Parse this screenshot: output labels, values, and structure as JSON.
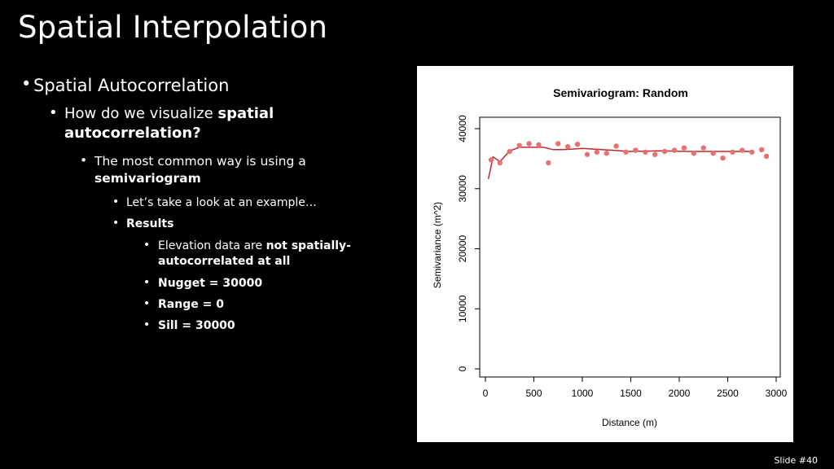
{
  "slide": {
    "title": "Spatial Interpolation",
    "footer": "Slide #40"
  },
  "bullets": {
    "b1": "Spatial Autocorrelation",
    "b2_plain": "How do we visualize ",
    "b2_bold": "spatial",
    "b2_line2": "autocorrelation?",
    "b3_plain": "The most common way is using a",
    "b3_bold": "semivariogram",
    "b4": "Let’s take a look at an example…",
    "b5": "Results",
    "b6_plain": "Elevation data are ",
    "b6_bold": "not spatially-",
    "b6_line2": "autocorrelated at all",
    "b7": "Nugget = 30000",
    "b8": "Range = 0",
    "b9": "Sill = 30000"
  },
  "chart_data": {
    "type": "scatter",
    "title": "Semivariogram: Random",
    "xlabel": "Distance (m)",
    "ylabel": "Semivariance (m^2)",
    "xlim": [
      0,
      3000
    ],
    "ylim": [
      0,
      40000
    ],
    "xticks": [
      "0",
      "500",
      "1000",
      "1500",
      "2000",
      "2500",
      "3000"
    ],
    "yticks": [
      "0",
      "10000",
      "20000",
      "30000",
      "40000"
    ],
    "point_color": "#e87070",
    "line_color": "#c0282d",
    "points": {
      "x": [
        60,
        150,
        250,
        350,
        450,
        550,
        650,
        750,
        850,
        950,
        1050,
        1150,
        1250,
        1350,
        1450,
        1550,
        1650,
        1750,
        1850,
        1950,
        2050,
        2150,
        2250,
        2350,
        2450,
        2550,
        2650,
        2750,
        2850,
        2900
      ],
      "y": [
        34800,
        34300,
        36200,
        37200,
        37500,
        37300,
        34300,
        37500,
        37000,
        37400,
        35700,
        36100,
        35900,
        37100,
        36100,
        36400,
        36100,
        35700,
        36200,
        36400,
        36800,
        35900,
        36800,
        35900,
        35100,
        36100,
        36400,
        36100,
        36500,
        35400
      ]
    },
    "model_line": {
      "x": [
        30,
        80,
        150,
        250,
        350,
        500,
        600,
        700,
        800,
        900,
        1000,
        1200,
        1500,
        1800,
        2100,
        2400,
        2750
      ],
      "y": [
        31600,
        35300,
        34500,
        36300,
        36900,
        36900,
        36900,
        36500,
        36500,
        36600,
        36700,
        36500,
        36200,
        36300,
        36200,
        36200,
        36200
      ]
    }
  }
}
